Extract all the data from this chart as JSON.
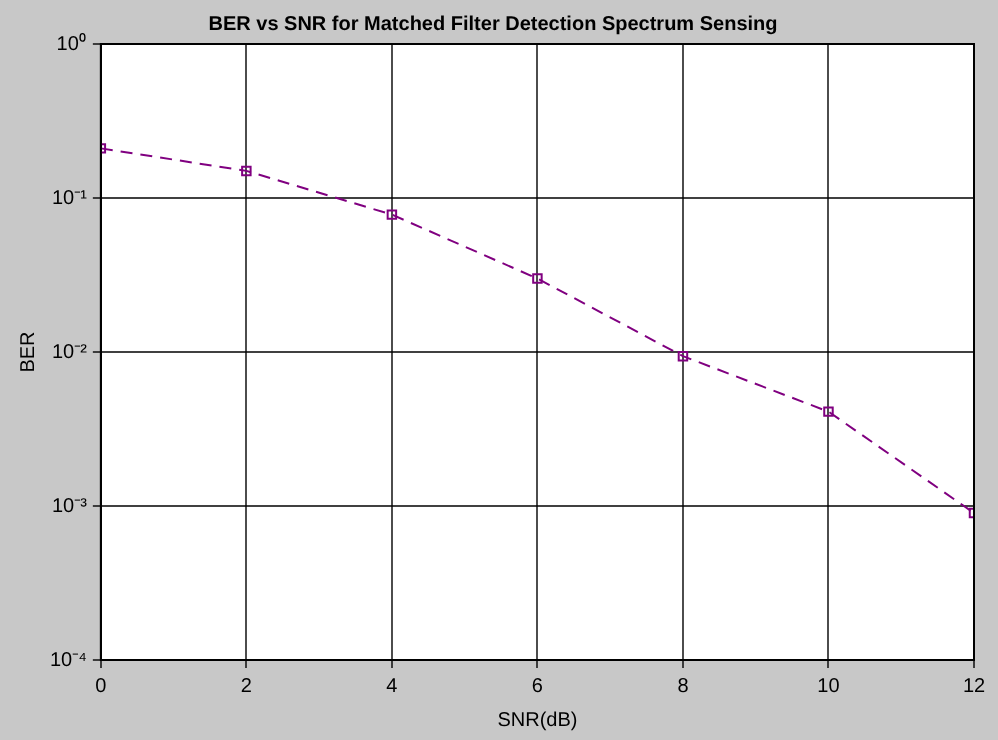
{
  "chart_data": {
    "type": "line",
    "title": "BER vs SNR for Matched Filter Detection Spectrum Sensing",
    "xlabel": "SNR(dB)",
    "ylabel": "BER",
    "x": [
      0,
      2,
      4,
      6,
      8,
      10,
      12
    ],
    "series": [
      {
        "color": "#800080",
        "values": [
          0.21,
          0.15,
          0.078,
          0.03,
          0.0094,
          0.0041,
          0.0009
        ]
      }
    ],
    "log": "y",
    "xlim": [
      0,
      12
    ],
    "xticks": [
      0,
      2,
      4,
      6,
      8,
      10,
      12
    ],
    "ylim": [
      0.0001,
      1
    ],
    "yticks": [
      {
        "value": 0.0001,
        "label": "10⁻⁴"
      },
      {
        "value": 0.001,
        "label": "10⁻³"
      },
      {
        "value": 0.01,
        "label": "10⁻²"
      },
      {
        "value": 0.1,
        "label": "10⁻¹"
      },
      {
        "value": 1,
        "label": "10⁰"
      }
    ],
    "grid": true,
    "marker": "square",
    "line_style": "dashed",
    "legend": false
  }
}
